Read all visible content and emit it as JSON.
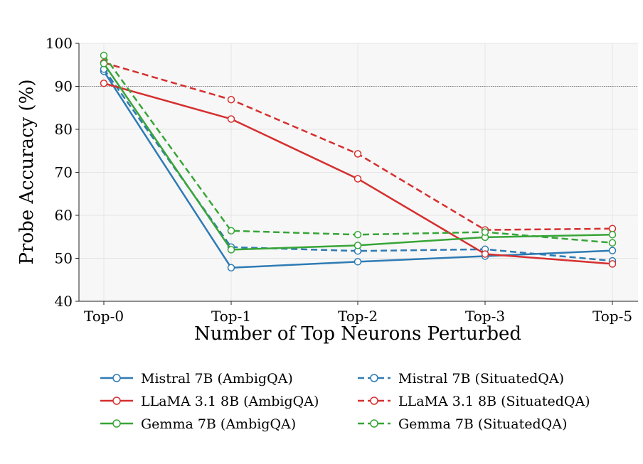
{
  "chart_data": {
    "type": "line",
    "title": "",
    "xlabel": "Number of Top Neurons Perturbed",
    "ylabel": "Probe Accuracy (%)",
    "categories": [
      "Top-0",
      "Top-1",
      "Top-2",
      "Top-3",
      "Top-5"
    ],
    "ylim": [
      40,
      100
    ],
    "yticks": [
      "40",
      "50",
      "60",
      "70",
      "80",
      "90",
      "100"
    ],
    "reference_line": 90,
    "grid": true,
    "legend_position": "bottom",
    "series": [
      {
        "name": "Mistral 7B (AmbigQA)",
        "color": "#2e7bb4",
        "dashed": false,
        "values": [
          93.5,
          47.8,
          49.2,
          50.5,
          51.8
        ]
      },
      {
        "name": "Mistral 7B (SituatedQA)",
        "color": "#2e7bb4",
        "dashed": true,
        "values": [
          94.0,
          52.6,
          51.7,
          52.1,
          49.4
        ]
      },
      {
        "name": "LLaMA 3.1 8B (AmbigQA)",
        "color": "#d62f2f",
        "dashed": false,
        "values": [
          90.7,
          82.4,
          68.5,
          51.0,
          48.7
        ]
      },
      {
        "name": "LLaMA 3.1 8B (SituatedQA)",
        "color": "#d62f2f",
        "dashed": true,
        "values": [
          95.5,
          86.9,
          74.3,
          56.6,
          56.9
        ]
      },
      {
        "name": "Gemma 7B (AmbigQA)",
        "color": "#37a537",
        "dashed": false,
        "values": [
          95.3,
          52.0,
          53.0,
          54.9,
          55.5
        ]
      },
      {
        "name": "Gemma 7B (SituatedQA)",
        "color": "#37a537",
        "dashed": true,
        "values": [
          97.2,
          56.4,
          55.5,
          56.1,
          53.6
        ]
      }
    ]
  }
}
